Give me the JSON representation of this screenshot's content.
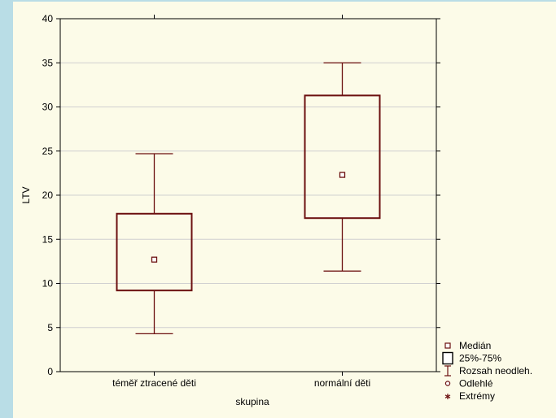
{
  "chart_data": {
    "type": "box",
    "title": "",
    "xlabel": "skupina",
    "ylabel": "LTV",
    "ylim": [
      0,
      40
    ],
    "yticks": [
      0,
      5,
      10,
      15,
      20,
      25,
      30,
      35,
      40
    ],
    "grid": true,
    "legend_position": "bottom-right",
    "colors": {
      "box": "#6b0f0f",
      "grid": "#d0d0d0",
      "panel": "#fcfbe8",
      "frame": "#b9dde6"
    },
    "categories": [
      "téměř ztracené děti",
      "normální děti"
    ],
    "boxes": [
      {
        "category": "téměř ztracené děti",
        "median": 12.7,
        "q1": 9.2,
        "q3": 17.9,
        "whisker_low": 4.3,
        "whisker_high": 24.7
      },
      {
        "category": "normální děti",
        "median": 22.3,
        "q1": 17.4,
        "q3": 31.3,
        "whisker_low": 11.4,
        "whisker_high": 35.0
      }
    ],
    "legend": [
      {
        "label": "Medián",
        "symbol": "small-square"
      },
      {
        "label": "25%-75%",
        "symbol": "box"
      },
      {
        "label": "Rozsah neodleh.",
        "symbol": "whisker"
      },
      {
        "label": "Odlehlé",
        "symbol": "circle"
      },
      {
        "label": "Extrémy",
        "symbol": "star"
      }
    ]
  }
}
